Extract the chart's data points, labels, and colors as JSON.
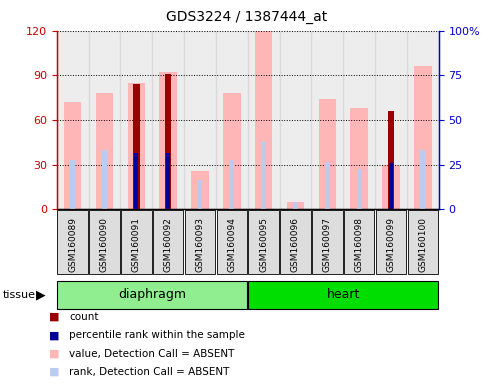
{
  "title": "GDS3224 / 1387444_at",
  "samples": [
    "GSM160089",
    "GSM160090",
    "GSM160091",
    "GSM160092",
    "GSM160093",
    "GSM160094",
    "GSM160095",
    "GSM160096",
    "GSM160097",
    "GSM160098",
    "GSM160099",
    "GSM160100"
  ],
  "groups": [
    {
      "label": "diaphragm",
      "indices": [
        0,
        1,
        2,
        3,
        4,
        5
      ],
      "color": "#90EE90"
    },
    {
      "label": "heart",
      "indices": [
        6,
        7,
        8,
        9,
        10,
        11
      ],
      "color": "#00DD00"
    }
  ],
  "pink_bar_heights": [
    72,
    78,
    85,
    92,
    26,
    78,
    120,
    5,
    74,
    68,
    30,
    96
  ],
  "light_blue_bar_heights": [
    33,
    40,
    0,
    0,
    20,
    33,
    45,
    5,
    32,
    27,
    0,
    40
  ],
  "dark_red_bar_heights": [
    0,
    0,
    84,
    91,
    0,
    0,
    0,
    0,
    0,
    0,
    66,
    0
  ],
  "dark_blue_bar_heights": [
    0,
    0,
    38,
    38,
    0,
    0,
    0,
    0,
    0,
    0,
    31,
    0
  ],
  "ylim_left": [
    0,
    120
  ],
  "ylim_right": [
    0,
    100
  ],
  "yticks_left": [
    0,
    30,
    60,
    90,
    120
  ],
  "yticks_right": [
    0,
    25,
    50,
    75,
    100
  ],
  "ytick_labels_right": [
    "0",
    "25",
    "50",
    "75",
    "100%"
  ],
  "bar_width": 0.55,
  "colors": {
    "dark_red": "#990000",
    "dark_blue": "#000099",
    "pink": "#FFB6B6",
    "light_blue": "#BBCCEE",
    "left_axis": "#CC0000",
    "right_axis": "#0000CC"
  },
  "legend_items": [
    {
      "color": "#990000",
      "label": "count"
    },
    {
      "color": "#000099",
      "label": "percentile rank within the sample"
    },
    {
      "color": "#FFB6B6",
      "label": "value, Detection Call = ABSENT"
    },
    {
      "color": "#BBCCEE",
      "label": "rank, Detection Call = ABSENT"
    }
  ],
  "tissue_label": "tissue"
}
